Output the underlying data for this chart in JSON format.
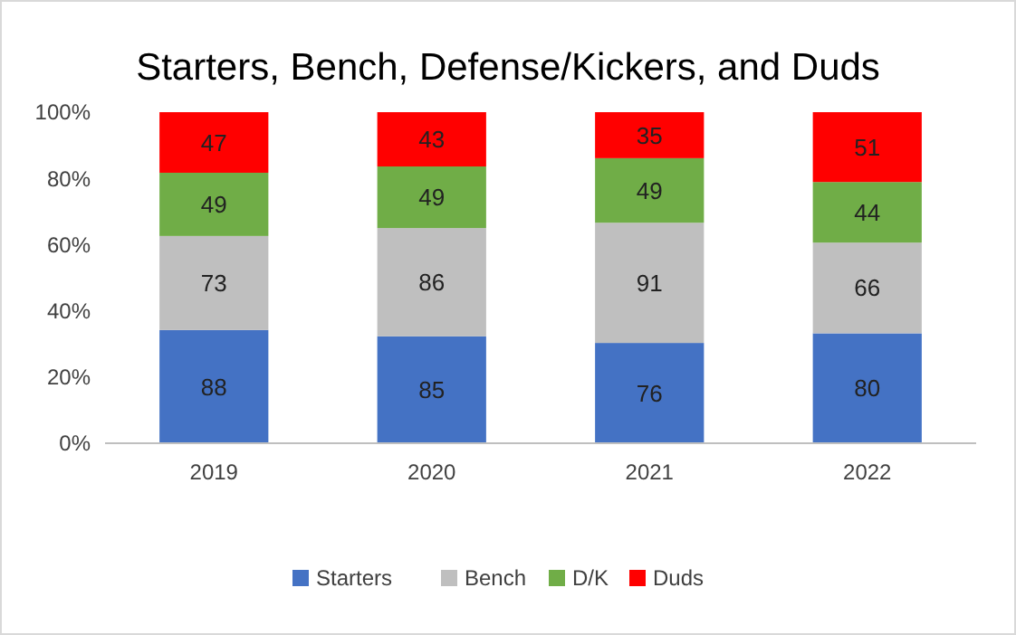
{
  "chart_data": {
    "type": "bar",
    "title": "Starters, Bench, Defense/Kickers, and Duds",
    "categories": [
      "2019",
      "2020",
      "2021",
      "2022"
    ],
    "stacked": true,
    "ylim": [
      0,
      100
    ],
    "yticks": [
      {
        "value": 0,
        "label": "0%"
      },
      {
        "value": 20,
        "label": "20%"
      },
      {
        "value": 40,
        "label": "40%"
      },
      {
        "value": 60,
        "label": "60%"
      },
      {
        "value": 80,
        "label": "80%"
      },
      {
        "value": 100,
        "label": "100%"
      }
    ],
    "legend": "bottom",
    "grid": false,
    "series": [
      {
        "name": "Starters",
        "color": "#4472c4",
        "values": [
          34.2,
          32.3,
          30.3,
          33.2
        ]
      },
      {
        "name": "Bench",
        "color": "#bfbfbf",
        "values": [
          28.4,
          32.7,
          36.3,
          27.4
        ]
      },
      {
        "name": "D/K",
        "color": "#70ad47",
        "values": [
          19.1,
          18.6,
          19.5,
          18.3
        ]
      },
      {
        "name": "Duds",
        "color": "#ff0000",
        "values": [
          18.3,
          16.4,
          13.9,
          21.1
        ]
      }
    ],
    "annotations": [
      "88",
      "85",
      "76",
      "80",
      "73",
      "86",
      "91",
      "66",
      "49",
      "49",
      "49",
      "44",
      "47",
      "43",
      "35",
      "51"
    ]
  }
}
